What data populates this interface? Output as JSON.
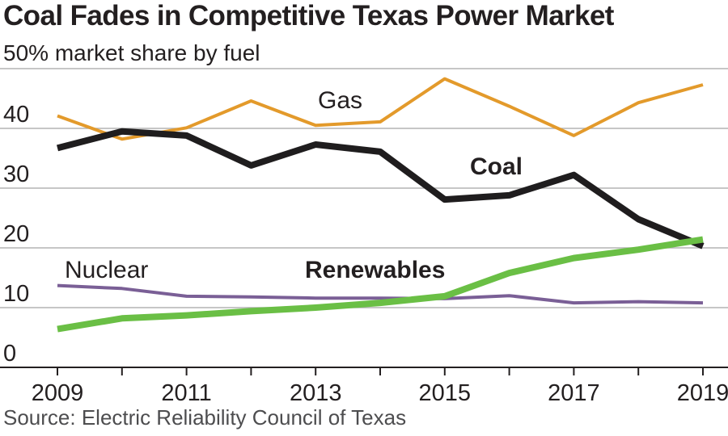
{
  "title": "Coal Fades in Competitive Texas Power Market",
  "subtitle": "50% market share by fuel",
  "source": "Source: Electric Reliability Council of Texas",
  "colors": {
    "gas": "#e39a2b",
    "coal": "#1f1d1e",
    "nuclear": "#7a5f96",
    "renewables": "#6abf45",
    "grid": "#b3b3b3",
    "axis": "#231f20"
  },
  "chart_data": {
    "type": "line",
    "title": "Coal Fades in Competitive Texas Power Market",
    "subtitle": "50% market share by fuel",
    "x": [
      2009,
      2010,
      2011,
      2012,
      2013,
      2014,
      2015,
      2016,
      2017,
      2018,
      2019
    ],
    "x_tick_labels": [
      "2009",
      "2011",
      "2013",
      "2015",
      "2017",
      "2019"
    ],
    "y_tick_labels": [
      "0",
      "10",
      "20",
      "30",
      "40"
    ],
    "ylim": [
      0,
      50
    ],
    "grid": true,
    "series": [
      {
        "name": "Gas",
        "key": "gas",
        "values": [
          42.1,
          38.2,
          40.1,
          44.6,
          40.5,
          41.1,
          48.3,
          43.7,
          38.8,
          44.3,
          47.3
        ],
        "label_bold": false
      },
      {
        "name": "Coal",
        "key": "coal",
        "values": [
          36.7,
          39.5,
          38.8,
          33.8,
          37.3,
          36.1,
          28.1,
          28.8,
          32.2,
          24.8,
          20.3
        ],
        "label_bold": true
      },
      {
        "name": "Nuclear",
        "key": "nuclear",
        "values": [
          13.7,
          13.2,
          11.9,
          11.8,
          11.6,
          11.6,
          11.5,
          12.0,
          10.8,
          11.0,
          10.8
        ],
        "label_bold": false
      },
      {
        "name": "Renewables",
        "key": "renewables",
        "values": [
          6.4,
          8.2,
          8.7,
          9.4,
          10.0,
          10.8,
          11.9,
          15.8,
          18.3,
          19.7,
          21.4
        ],
        "label_bold": true
      }
    ]
  }
}
